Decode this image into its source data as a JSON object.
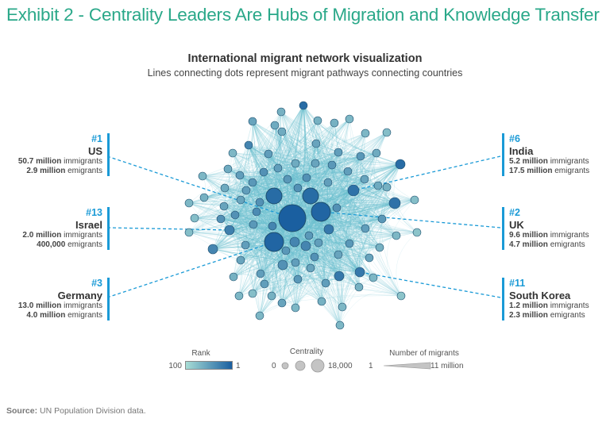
{
  "header": {
    "exhibit_title": "Exhibit 2 - Centrality Leaders Are Hubs of Migration and Knowledge Transfer",
    "chart_title": "International migrant network visualization",
    "chart_subtitle": "Lines connecting dots represent migrant pathways connecting countries"
  },
  "colors": {
    "title_green": "#2aa889",
    "rank_blue": "#1a9ad6",
    "node_dark": "#1a5fa0",
    "node_light": "#a8ddd5",
    "edge": "#6cc0cf"
  },
  "callouts": [
    {
      "id": "us",
      "side": "left",
      "rank": "#1",
      "country": "US",
      "immigrants_num": "50.7 million",
      "immigrants_label": "immigrants",
      "emigrants_num": "2.9 million",
      "emigrants_label": "emigrants"
    },
    {
      "id": "israel",
      "side": "left",
      "rank": "#13",
      "country": "Israel",
      "immigrants_num": "2.0 million",
      "immigrants_label": "immigrants",
      "emigrants_num": "400,000",
      "emigrants_label": "emigrants"
    },
    {
      "id": "germany",
      "side": "left",
      "rank": "#3",
      "country": "Germany",
      "immigrants_num": "13.0 million",
      "immigrants_label": "immigrants",
      "emigrants_num": "4.0 million",
      "emigrants_label": "emigrants"
    },
    {
      "id": "india",
      "side": "right",
      "rank": "#6",
      "country": "India",
      "immigrants_num": "5.2 million",
      "immigrants_label": "immigrants",
      "emigrants_num": "17.5 million",
      "emigrants_label": "emigrants"
    },
    {
      "id": "uk",
      "side": "right",
      "rank": "#2",
      "country": "UK",
      "immigrants_num": "9.6 million",
      "immigrants_label": "immigrants",
      "emigrants_num": "4.7 million",
      "emigrants_label": "emigrants"
    },
    {
      "id": "south_korea",
      "side": "right",
      "rank": "#11",
      "country": "South Korea",
      "immigrants_num": "1.2 million",
      "immigrants_label": "immigrants",
      "emigrants_num": "2.3 million",
      "emigrants_label": "emigrants"
    }
  ],
  "legend": {
    "rank": {
      "title": "Rank",
      "min_label": "100",
      "max_label": "1"
    },
    "centrality": {
      "title": "Centrality",
      "min_label": "0",
      "max_label": "18,000"
    },
    "migrants": {
      "title": "Number of migrants",
      "min_label": "1",
      "max_label": "11 million"
    }
  },
  "source": {
    "label": "Source:",
    "text": "UN Population Division data."
  }
}
